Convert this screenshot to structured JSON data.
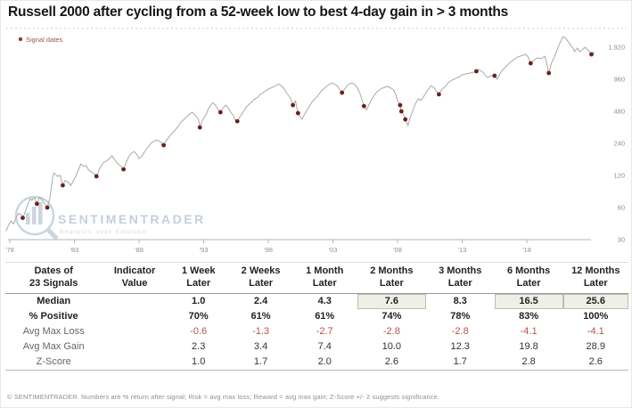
{
  "title": "Russell 2000 after cycling from a 52-week low to best 4-day gain in > 3 months",
  "legend": {
    "label": "Signal dates",
    "dot_color": "#8f3a36"
  },
  "watermark": {
    "name": "SENTIMENTRADER",
    "tagline": "Analysis over Emotion"
  },
  "footer": "© SENTIMENTRADER. Numbers are % return after signal; Risk = avg max loss; Reward = avg max gain; Z-Score +/- 2 suggests significance.",
  "chart_data": {
    "type": "line",
    "title": "Russell 2000",
    "y_scale": "log",
    "ylim": [
      30,
      2600
    ],
    "grid": false,
    "legend_position": "top-left",
    "line_color": "#a9a9a9",
    "signal_color": "#701f1c",
    "y_ticks": [
      {
        "value": 1920,
        "label": "1,920"
      },
      {
        "value": 960,
        "label": "960"
      },
      {
        "value": 480,
        "label": "480"
      },
      {
        "value": 240,
        "label": "240"
      },
      {
        "value": 120,
        "label": "120"
      },
      {
        "value": 60,
        "label": "60"
      },
      {
        "value": 30,
        "label": "30"
      }
    ],
    "x_ticks": [
      {
        "year": 1978,
        "label": "'78"
      },
      {
        "year": 1983,
        "label": "'83"
      },
      {
        "year": 1988,
        "label": "'88"
      },
      {
        "year": 1993,
        "label": "'93"
      },
      {
        "year": 1998,
        "label": "'98"
      },
      {
        "year": 2003,
        "label": "'03"
      },
      {
        "year": 2008,
        "label": "'08"
      },
      {
        "year": 2013,
        "label": "'13"
      },
      {
        "year": 2018,
        "label": "'18"
      }
    ],
    "series": [
      {
        "name": "Russell 2000",
        "points": [
          [
            1977.7,
            36
          ],
          [
            1977.9,
            41
          ],
          [
            1978.1,
            45
          ],
          [
            1978.3,
            42
          ],
          [
            1978.5,
            49
          ],
          [
            1978.7,
            53
          ],
          [
            1978.9,
            51
          ],
          [
            1979.0,
            48
          ],
          [
            1979.2,
            55
          ],
          [
            1979.4,
            65
          ],
          [
            1979.6,
            73
          ],
          [
            1979.7,
            70
          ],
          [
            1979.9,
            75
          ],
          [
            1980.1,
            65
          ],
          [
            1980.3,
            75
          ],
          [
            1980.5,
            70
          ],
          [
            1980.7,
            65
          ],
          [
            1980.9,
            60
          ],
          [
            1981.1,
            73
          ],
          [
            1981.3,
            111
          ],
          [
            1981.4,
            127
          ],
          [
            1981.7,
            118
          ],
          [
            1981.9,
            120
          ],
          [
            1982.0,
            108
          ],
          [
            1982.1,
            97
          ],
          [
            1982.3,
            108
          ],
          [
            1982.6,
            102
          ],
          [
            1982.7,
            96
          ],
          [
            1982.9,
            106
          ],
          [
            1983.1,
            118
          ],
          [
            1983.3,
            135
          ],
          [
            1983.5,
            154
          ],
          [
            1983.7,
            146
          ],
          [
            1983.9,
            149
          ],
          [
            1984.1,
            135
          ],
          [
            1984.3,
            130
          ],
          [
            1984.5,
            125
          ],
          [
            1984.7,
            118
          ],
          [
            1984.9,
            135
          ],
          [
            1985.1,
            151
          ],
          [
            1985.3,
            161
          ],
          [
            1985.5,
            164
          ],
          [
            1985.7,
            173
          ],
          [
            1985.9,
            184
          ],
          [
            1986.1,
            170
          ],
          [
            1986.3,
            158
          ],
          [
            1986.6,
            146
          ],
          [
            1986.8,
            137
          ],
          [
            1987.0,
            158
          ],
          [
            1987.2,
            180
          ],
          [
            1987.4,
            194
          ],
          [
            1987.6,
            202
          ],
          [
            1987.8,
            191
          ],
          [
            1988.0,
            173
          ],
          [
            1988.2,
            180
          ],
          [
            1988.4,
            198
          ],
          [
            1988.6,
            214
          ],
          [
            1988.8,
            231
          ],
          [
            1989.0,
            245
          ],
          [
            1989.2,
            254
          ],
          [
            1989.4,
            259
          ],
          [
            1989.7,
            245
          ],
          [
            1989.9,
            231
          ],
          [
            1990.1,
            254
          ],
          [
            1990.4,
            285
          ],
          [
            1990.7,
            312
          ],
          [
            1991.0,
            343
          ],
          [
            1991.2,
            376
          ],
          [
            1991.5,
            406
          ],
          [
            1991.8,
            440
          ],
          [
            1992.1,
            471
          ],
          [
            1992.3,
            450
          ],
          [
            1992.6,
            404
          ],
          [
            1992.7,
            339
          ],
          [
            1992.9,
            397
          ],
          [
            1993.2,
            450
          ],
          [
            1993.4,
            516
          ],
          [
            1993.7,
            580
          ],
          [
            1993.9,
            548
          ],
          [
            1994.1,
            505
          ],
          [
            1994.3,
            471
          ],
          [
            1994.5,
            516
          ],
          [
            1994.7,
            549
          ],
          [
            1994.9,
            516
          ],
          [
            1995.1,
            471
          ],
          [
            1995.3,
            436
          ],
          [
            1995.4,
            406
          ],
          [
            1995.6,
            388
          ],
          [
            1995.8,
            427
          ],
          [
            1996.1,
            480
          ],
          [
            1996.3,
            528
          ],
          [
            1996.6,
            571
          ],
          [
            1996.9,
            619
          ],
          [
            1997.2,
            655
          ],
          [
            1997.4,
            693
          ],
          [
            1997.7,
            733
          ],
          [
            1998.0,
            776
          ],
          [
            1998.3,
            806
          ],
          [
            1998.6,
            837
          ],
          [
            1998.8,
            870
          ],
          [
            1999.0,
            837
          ],
          [
            1999.2,
            790
          ],
          [
            1999.4,
            719
          ],
          [
            1999.7,
            641
          ],
          [
            1999.9,
            549
          ],
          [
            2000.1,
            605
          ],
          [
            2000.3,
            462
          ],
          [
            2000.6,
            404
          ],
          [
            2000.8,
            450
          ],
          [
            2001.1,
            516
          ],
          [
            2001.4,
            593
          ],
          [
            2001.8,
            666
          ],
          [
            2002.1,
            745
          ],
          [
            2002.5,
            823
          ],
          [
            2002.8,
            872
          ],
          [
            2003.0,
            887
          ],
          [
            2003.3,
            837
          ],
          [
            2003.5,
            776
          ],
          [
            2003.7,
            719
          ],
          [
            2003.9,
            776
          ],
          [
            2004.1,
            837
          ],
          [
            2004.3,
            872
          ],
          [
            2004.5,
            887
          ],
          [
            2004.7,
            853
          ],
          [
            2004.9,
            790
          ],
          [
            2005.1,
            705
          ],
          [
            2005.4,
            538
          ],
          [
            2005.6,
            494
          ],
          [
            2005.8,
            560
          ],
          [
            2006.0,
            619
          ],
          [
            2006.2,
            680
          ],
          [
            2006.4,
            733
          ],
          [
            2006.6,
            762
          ],
          [
            2006.8,
            790
          ],
          [
            2007.0,
            806
          ],
          [
            2007.2,
            823
          ],
          [
            2007.4,
            806
          ],
          [
            2007.7,
            762
          ],
          [
            2007.9,
            666
          ],
          [
            2008.0,
            605
          ],
          [
            2008.2,
            549
          ],
          [
            2008.3,
            480
          ],
          [
            2008.5,
            436
          ],
          [
            2008.6,
            404
          ],
          [
            2008.8,
            353
          ],
          [
            2009.0,
            427
          ],
          [
            2009.2,
            494
          ],
          [
            2009.4,
            571
          ],
          [
            2009.6,
            632
          ],
          [
            2009.8,
            605
          ],
          [
            2010.0,
            655
          ],
          [
            2010.2,
            719
          ],
          [
            2010.4,
            776
          ],
          [
            2010.6,
            837
          ],
          [
            2010.8,
            806
          ],
          [
            2011.0,
            745
          ],
          [
            2011.2,
            693
          ],
          [
            2011.4,
            762
          ],
          [
            2011.7,
            823
          ],
          [
            2011.9,
            887
          ],
          [
            2012.2,
            940
          ],
          [
            2012.5,
            977
          ],
          [
            2012.8,
            1016
          ],
          [
            2013.0,
            1056
          ],
          [
            2013.3,
            1077
          ],
          [
            2013.6,
            1098
          ],
          [
            2013.9,
            1120
          ],
          [
            2014.1,
            1142
          ],
          [
            2014.3,
            1187
          ],
          [
            2014.6,
            1120
          ],
          [
            2014.8,
            1037
          ],
          [
            2015.0,
            998
          ],
          [
            2015.2,
            1037
          ],
          [
            2015.5,
            1037
          ],
          [
            2015.7,
            960
          ],
          [
            2015.9,
            1077
          ],
          [
            2016.1,
            1164
          ],
          [
            2016.3,
            1233
          ],
          [
            2016.5,
            1307
          ],
          [
            2016.7,
            1384
          ],
          [
            2016.9,
            1440
          ],
          [
            2017.1,
            1497
          ],
          [
            2017.3,
            1556
          ],
          [
            2017.5,
            1583
          ],
          [
            2017.7,
            1615
          ],
          [
            2017.9,
            1646
          ],
          [
            2018.1,
            1556
          ],
          [
            2018.3,
            1358
          ],
          [
            2018.6,
            1470
          ],
          [
            2018.8,
            1527
          ],
          [
            2019.0,
            1497
          ],
          [
            2019.2,
            1527
          ],
          [
            2019.4,
            1583
          ],
          [
            2019.5,
            1413
          ],
          [
            2019.7,
            1098
          ],
          [
            2019.9,
            1358
          ],
          [
            2020.1,
            1527
          ],
          [
            2020.3,
            1744
          ],
          [
            2020.5,
            2031
          ],
          [
            2020.7,
            2275
          ],
          [
            2020.8,
            2418
          ],
          [
            2021.0,
            2337
          ],
          [
            2021.2,
            2162
          ],
          [
            2021.4,
            2000
          ],
          [
            2021.6,
            1851
          ],
          [
            2021.7,
            1744
          ],
          [
            2021.9,
            1888
          ],
          [
            2022.1,
            1744
          ],
          [
            2022.3,
            1814
          ],
          [
            2022.5,
            1920
          ],
          [
            2022.7,
            1814
          ],
          [
            2022.9,
            1713
          ],
          [
            2023.0,
            1646
          ],
          [
            2023.2,
            1744
          ]
        ]
      }
    ],
    "signals": [
      [
        1979.0,
        48
      ],
      [
        1980.1,
        65
      ],
      [
        1980.9,
        60
      ],
      [
        1982.1,
        97
      ],
      [
        1984.7,
        118
      ],
      [
        1986.8,
        137
      ],
      [
        1989.9,
        231
      ],
      [
        1992.7,
        339
      ],
      [
        1994.3,
        471
      ],
      [
        1995.6,
        388
      ],
      [
        1999.9,
        549
      ],
      [
        2000.3,
        462
      ],
      [
        2003.7,
        719
      ],
      [
        2005.4,
        538
      ],
      [
        2008.2,
        549
      ],
      [
        2008.3,
        480
      ],
      [
        2008.6,
        404
      ],
      [
        2011.2,
        693
      ],
      [
        2014.1,
        1142
      ],
      [
        2015.5,
        1037
      ],
      [
        2018.3,
        1358
      ],
      [
        2019.7,
        1098
      ],
      [
        2023.0,
        1646
      ]
    ]
  },
  "table": {
    "header": [
      [
        "Dates of",
        "23 Signals"
      ],
      [
        "Indicator",
        "Value"
      ],
      [
        "1 Week",
        "Later"
      ],
      [
        "2 Weeks",
        "Later"
      ],
      [
        "1 Month",
        "Later"
      ],
      [
        "2 Months",
        "Later"
      ],
      [
        "3 Months",
        "Later"
      ],
      [
        "6 Months",
        "Later"
      ],
      [
        "12 Months",
        "Later"
      ]
    ],
    "rows": [
      {
        "label": "Median",
        "values": [
          "",
          "1.0",
          "2.4",
          "4.3",
          "7.6",
          "8.3",
          "16.5",
          "25.6"
        ],
        "bold": true,
        "highlight": [
          4,
          6,
          7
        ]
      },
      {
        "label": "% Positive",
        "values": [
          "",
          "70%",
          "61%",
          "61%",
          "74%",
          "78%",
          "83%",
          "100%"
        ],
        "bold": true
      },
      {
        "label": "Avg Max Loss",
        "values": [
          "",
          "-0.6",
          "-1.3",
          "-2.7",
          "-2.8",
          "-2.8",
          "-4.1",
          "-4.1"
        ],
        "negative": true,
        "gray": true
      },
      {
        "label": "Avg Max Gain",
        "values": [
          "",
          "2.3",
          "3.4",
          "7.4",
          "10.0",
          "12.3",
          "19.8",
          "28.9"
        ],
        "gray": true
      },
      {
        "label": "Z-Score",
        "values": [
          "",
          "1.0",
          "1.7",
          "2.0",
          "2.6",
          "1.7",
          "2.8",
          "2.6"
        ],
        "gray": true
      }
    ]
  }
}
